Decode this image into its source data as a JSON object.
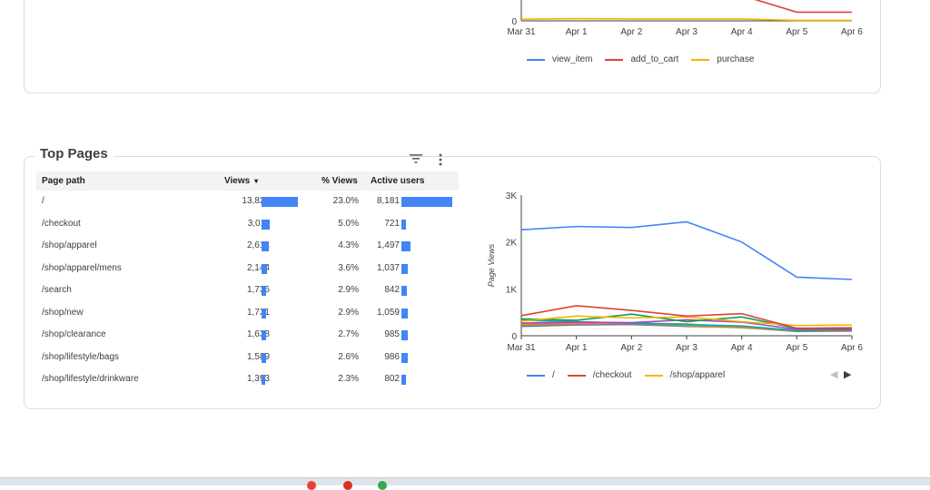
{
  "events_chart": {
    "x_ticks": [
      "Mar 31",
      "Apr 1",
      "Apr 2",
      "Apr 3",
      "Apr 4",
      "Apr 5",
      "Apr 6"
    ],
    "y_tick_zero": "0",
    "legend": [
      {
        "label": "view_item",
        "color": "#4285f4"
      },
      {
        "label": "add_to_cart",
        "color": "#db4437"
      },
      {
        "label": "purchase",
        "color": "#f4b400"
      }
    ]
  },
  "top_pages": {
    "title": "Top Pages",
    "filter_icon": "filter-icon",
    "more_icon": "more-vert-icon",
    "columns": {
      "path": "Page path",
      "views": "Views",
      "sort_indicator": "▾",
      "pct": "% Views",
      "active": "Active users"
    },
    "rows": [
      {
        "path": "/",
        "views": "13,823",
        "pct": "23.0%",
        "active": "8,181",
        "views_n": 13823,
        "active_n": 8181
      },
      {
        "path": "/checkout",
        "views": "3,011",
        "pct": "5.0%",
        "active": "721",
        "views_n": 3011,
        "active_n": 721
      },
      {
        "path": "/shop/apparel",
        "views": "2,614",
        "pct": "4.3%",
        "active": "1,497",
        "views_n": 2614,
        "active_n": 1497
      },
      {
        "path": "/shop/apparel/mens",
        "views": "2,144",
        "pct": "3.6%",
        "active": "1,037",
        "views_n": 2144,
        "active_n": 1037
      },
      {
        "path": "/search",
        "views": "1,736",
        "pct": "2.9%",
        "active": "842",
        "views_n": 1736,
        "active_n": 842
      },
      {
        "path": "/shop/new",
        "views": "1,731",
        "pct": "2.9%",
        "active": "1,059",
        "views_n": 1731,
        "active_n": 1059
      },
      {
        "path": "/shop/clearance",
        "views": "1,638",
        "pct": "2.7%",
        "active": "985",
        "views_n": 1638,
        "active_n": 985
      },
      {
        "path": "/shop/lifestyle/bags",
        "views": "1,589",
        "pct": "2.6%",
        "active": "986",
        "views_n": 1589,
        "active_n": 986
      },
      {
        "path": "/shop/lifestyle/drinkware",
        "views": "1,393",
        "pct": "2.3%",
        "active": "802",
        "views_n": 1393,
        "active_n": 802
      }
    ],
    "bar_color": "#4285f4"
  },
  "chart_data": [
    {
      "type": "line",
      "title": "",
      "x": [
        "Mar 31",
        "Apr 1",
        "Apr 2",
        "Apr 3",
        "Apr 4",
        "Apr 5",
        "Apr 6"
      ],
      "series": [
        {
          "name": "add_to_cart",
          "color": "#db4437",
          "values": [
            null,
            null,
            null,
            null,
            null,
            16,
            16
          ]
        },
        {
          "name": "purchase",
          "color": "#f4b400",
          "values": [
            3,
            4,
            3.5,
            3.5,
            3.5,
            1,
            1
          ]
        }
      ],
      "ylim": [
        0,
        120
      ]
    },
    {
      "type": "line",
      "title": "",
      "ylabel": "Page Views",
      "x": [
        "Mar 31",
        "Apr 1",
        "Apr 2",
        "Apr 3",
        "Apr 4",
        "Apr 5",
        "Apr 6"
      ],
      "y_ticks": [
        "3K",
        "2K",
        "1K",
        "0"
      ],
      "ylim": [
        0,
        3000
      ],
      "legend_items": [
        "/",
        "/checkout",
        "/shop/apparel"
      ],
      "series": [
        {
          "name": "/",
          "color": "#4285f4",
          "values": [
            2260,
            2330,
            2310,
            2430,
            2000,
            1250,
            1200
          ]
        },
        {
          "name": "/checkout",
          "color": "#db4437",
          "values": [
            430,
            640,
            540,
            420,
            470,
            160,
            170
          ]
        },
        {
          "name": "/shop/apparel",
          "color": "#f4b400",
          "values": [
            310,
            420,
            380,
            400,
            300,
            220,
            230
          ]
        },
        {
          "color": "#0f9d58",
          "values": [
            360,
            330,
            460,
            300,
            400,
            160,
            150
          ]
        },
        {
          "color": "#ab47bc",
          "values": [
            270,
            290,
            280,
            340,
            290,
            140,
            120
          ]
        },
        {
          "color": "#00acc1",
          "values": [
            330,
            300,
            270,
            240,
            210,
            110,
            140
          ]
        },
        {
          "color": "#ff7043",
          "values": [
            250,
            260,
            270,
            250,
            190,
            120,
            130
          ]
        },
        {
          "color": "#9e9d24",
          "values": [
            220,
            250,
            260,
            210,
            170,
            100,
            110
          ]
        },
        {
          "color": "#5c6bc0",
          "values": [
            200,
            230,
            240,
            200,
            180,
            90,
            100
          ]
        }
      ]
    }
  ],
  "legend_nav": {
    "prev": "◀",
    "next": "▶"
  }
}
